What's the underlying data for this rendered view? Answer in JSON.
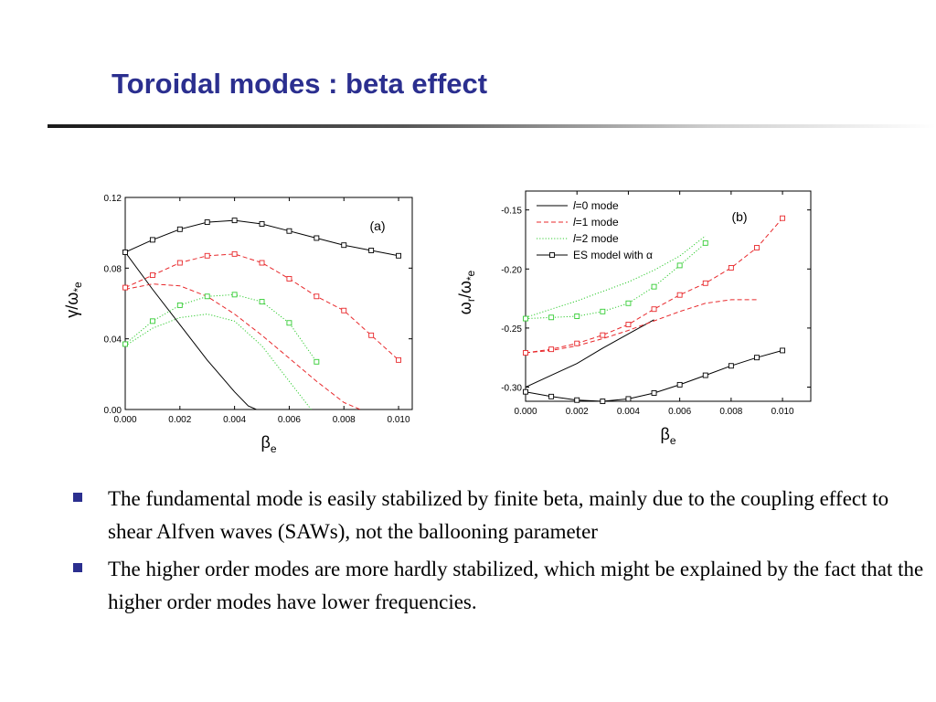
{
  "slide": {
    "title": "Toroidal modes : beta effect"
  },
  "colors": {
    "title": "#2b2f8f",
    "bullet": "#2b2f8f",
    "mode_l0": "#000000",
    "mode_l1": "#e8282b",
    "mode_l2": "#33cc33",
    "es_model": "#000000"
  },
  "chart_data": [
    {
      "type": "line",
      "panel_label": "(a)",
      "xlabel": "β_e",
      "ylabel": "γ/ω*e",
      "xlim": [
        0.0,
        0.0105
      ],
      "ylim": [
        0.0,
        0.12
      ],
      "xticks": [
        "0.000",
        "0.002",
        "0.004",
        "0.006",
        "0.008",
        "0.010"
      ],
      "yticks": [
        "0.00",
        "0.04",
        "0.08",
        "0.12"
      ],
      "grid": false,
      "legend": "none",
      "series": [
        {
          "style": "solid",
          "color": "#000000",
          "marker": "none",
          "x": [
            0.0,
            0.001,
            0.002,
            0.003,
            0.0035,
            0.004,
            0.0045,
            0.0048
          ],
          "y": [
            0.089,
            0.068,
            0.048,
            0.028,
            0.019,
            0.01,
            0.002,
            0.0
          ]
        },
        {
          "style": "dashed",
          "color": "#e8282b",
          "marker": "none",
          "x": [
            0.0,
            0.001,
            0.002,
            0.003,
            0.004,
            0.005,
            0.006,
            0.007,
            0.008,
            0.0086
          ],
          "y": [
            0.068,
            0.071,
            0.07,
            0.064,
            0.054,
            0.042,
            0.029,
            0.016,
            0.004,
            0.0
          ]
        },
        {
          "style": "dotted",
          "color": "#33cc33",
          "marker": "none",
          "x": [
            0.0,
            0.001,
            0.002,
            0.003,
            0.004,
            0.005,
            0.0055,
            0.006,
            0.0065,
            0.0068
          ],
          "y": [
            0.036,
            0.046,
            0.052,
            0.054,
            0.05,
            0.036,
            0.026,
            0.016,
            0.006,
            0.0
          ]
        },
        {
          "style": "solid",
          "color": "#000000",
          "marker": "square",
          "x": [
            0.0,
            0.001,
            0.002,
            0.003,
            0.004,
            0.005,
            0.006,
            0.007,
            0.008,
            0.009,
            0.01
          ],
          "y": [
            0.089,
            0.096,
            0.102,
            0.106,
            0.107,
            0.105,
            0.101,
            0.097,
            0.093,
            0.09,
            0.087
          ]
        },
        {
          "style": "dashed",
          "color": "#e8282b",
          "marker": "square",
          "x": [
            0.0,
            0.001,
            0.002,
            0.003,
            0.004,
            0.005,
            0.006,
            0.007,
            0.008,
            0.009,
            0.01
          ],
          "y": [
            0.069,
            0.076,
            0.083,
            0.087,
            0.088,
            0.083,
            0.074,
            0.064,
            0.056,
            0.042,
            0.028
          ]
        },
        {
          "style": "dotted",
          "color": "#33cc33",
          "marker": "square",
          "x": [
            0.0,
            0.001,
            0.002,
            0.003,
            0.004,
            0.005,
            0.006,
            0.007
          ],
          "y": [
            0.037,
            0.05,
            0.059,
            0.064,
            0.065,
            0.061,
            0.049,
            0.027
          ]
        }
      ]
    },
    {
      "type": "line",
      "panel_label": "(b)",
      "xlabel": "β_e",
      "ylabel": "ω_r/ω*e",
      "xlim": [
        0.0,
        0.0111
      ],
      "ylim": [
        -0.312,
        -0.134
      ],
      "xticks": [
        "0.000",
        "0.002",
        "0.004",
        "0.006",
        "0.008",
        "0.010"
      ],
      "yticks": [
        "-0.15",
        "-0.20",
        "-0.25",
        "-0.30"
      ],
      "grid": false,
      "legend": "top-left",
      "legend_entries": [
        {
          "label_prefix": "l",
          "label_rest": "=0 mode",
          "style": "solid",
          "color": "#000000",
          "marker": "none"
        },
        {
          "label_prefix": "l",
          "label_rest": "=1 mode",
          "style": "dashed",
          "color": "#e8282b",
          "marker": "none"
        },
        {
          "label_prefix": "l",
          "label_rest": "=2 mode",
          "style": "dotted",
          "color": "#33cc33",
          "marker": "none"
        },
        {
          "label_prefix": "ES model with ",
          "label_rest": "α",
          "style": "solid",
          "color": "#000000",
          "marker": "square"
        }
      ],
      "series": [
        {
          "style": "solid",
          "color": "#000000",
          "marker": "none",
          "x": [
            0.0,
            0.001,
            0.002,
            0.003,
            0.004,
            0.005
          ],
          "y": [
            -0.3,
            -0.29,
            -0.28,
            -0.267,
            -0.255,
            -0.243
          ]
        },
        {
          "style": "dashed",
          "color": "#e8282b",
          "marker": "none",
          "x": [
            0.0,
            0.001,
            0.002,
            0.003,
            0.004,
            0.005,
            0.006,
            0.007,
            0.008,
            0.009
          ],
          "y": [
            -0.271,
            -0.269,
            -0.265,
            -0.259,
            -0.252,
            -0.244,
            -0.236,
            -0.229,
            -0.226,
            -0.226
          ]
        },
        {
          "style": "dotted",
          "color": "#33cc33",
          "marker": "none",
          "x": [
            0.0,
            0.001,
            0.002,
            0.003,
            0.004,
            0.005,
            0.006,
            0.007
          ],
          "y": [
            -0.241,
            -0.234,
            -0.227,
            -0.219,
            -0.211,
            -0.201,
            -0.189,
            -0.172
          ]
        },
        {
          "style": "solid",
          "color": "#000000",
          "marker": "square",
          "x": [
            0.0,
            0.001,
            0.002,
            0.003,
            0.004,
            0.005,
            0.006,
            0.007,
            0.008,
            0.009,
            0.01
          ],
          "y": [
            -0.304,
            -0.308,
            -0.311,
            -0.312,
            -0.31,
            -0.305,
            -0.298,
            -0.29,
            -0.282,
            -0.275,
            -0.269
          ]
        },
        {
          "style": "dashed",
          "color": "#e8282b",
          "marker": "square",
          "x": [
            0.0,
            0.001,
            0.002,
            0.003,
            0.004,
            0.005,
            0.006,
            0.007,
            0.008,
            0.009,
            0.01
          ],
          "y": [
            -0.271,
            -0.268,
            -0.263,
            -0.256,
            -0.247,
            -0.234,
            -0.222,
            -0.212,
            -0.199,
            -0.182,
            -0.157
          ]
        },
        {
          "style": "dotted",
          "color": "#33cc33",
          "marker": "square",
          "x": [
            0.0,
            0.001,
            0.002,
            0.003,
            0.004,
            0.005,
            0.006,
            0.007
          ],
          "y": [
            -0.242,
            -0.241,
            -0.24,
            -0.236,
            -0.229,
            -0.215,
            -0.197,
            -0.178
          ]
        }
      ]
    }
  ],
  "bullets": [
    {
      "text": " The fundamental mode is easily stabilized by finite beta, mainly due to the coupling effect to shear Alfven waves (SAWs), not  the ballooning parameter"
    },
    {
      "text": " The higher order modes are more hardly stabilized, which might be explained by the fact that the higher order modes have lower frequencies."
    }
  ]
}
